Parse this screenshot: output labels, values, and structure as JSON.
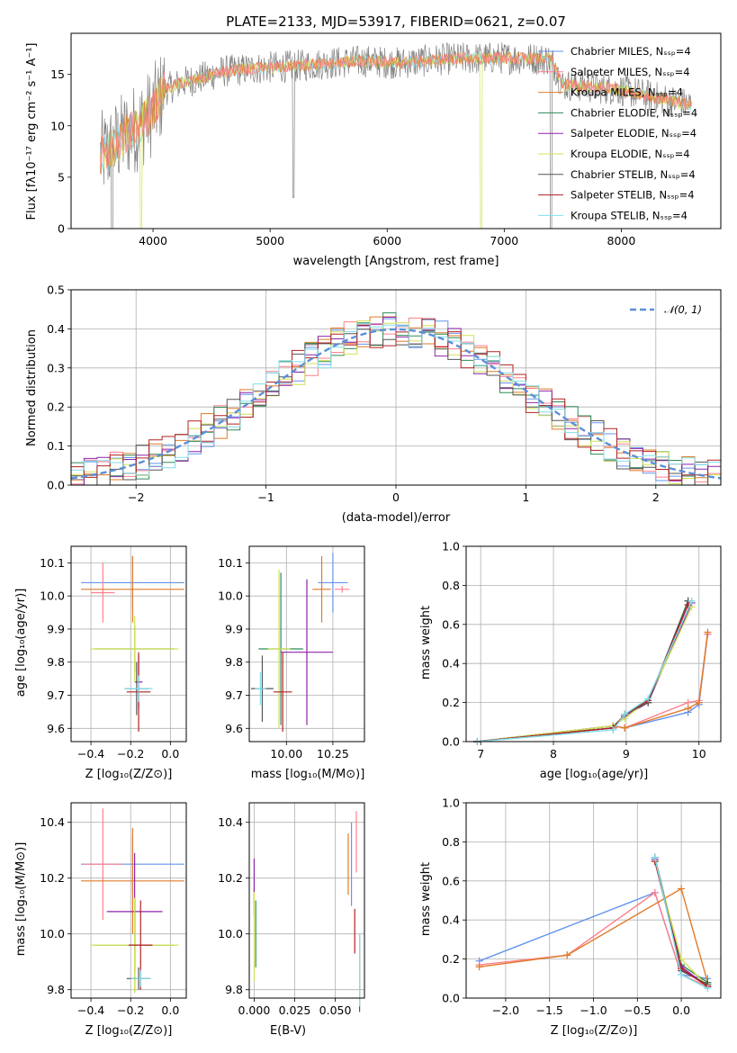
{
  "colors": {
    "palette": [
      "#6495ed",
      "#ff7f8c",
      "#e07b2a",
      "#2e8b57",
      "#8e24aa",
      "#d4e157",
      "#555555",
      "#b22222",
      "#80deea"
    ],
    "grid": "#b0b0b0",
    "gauss": "#5b8fd8"
  },
  "chart_data": [
    {
      "type": "line",
      "title": "PLATE=2133, MJD=53917, FIBERID=0621, z=0.07",
      "xlabel": "wavelength [Angstrom, rest frame]",
      "ylabel": "Flux [fλ10⁻¹⁷ erg cm⁻² s⁻¹ A⁻¹]",
      "xlim": [
        3300,
        8850
      ],
      "ylim": [
        0,
        19
      ],
      "xticks": [
        "4000",
        "5000",
        "6000",
        "7000",
        "8000"
      ],
      "yticks": [
        "0",
        "5",
        "10",
        "15"
      ],
      "legend": [
        "Chabrier MILES, Nₛₛₚ=4",
        "Salpeter MILES, Nₛₛₚ=4",
        "Kroupa MILES, Nₛₛₚ=4",
        "Chabrier ELODIE, Nₛₛₚ=4",
        "Salpeter ELODIE, Nₛₛₚ=4",
        "Kroupa ELODIE, Nₛₛₚ=4",
        "Chabrier STELIB, Nₛₛₚ=4",
        "Salpeter STELIB, Nₛₛₚ=4",
        "Kroupa STELIB, Nₛₛₚ=4"
      ],
      "legend_loc": "right",
      "continuum": {
        "x": [
          3550,
          3650,
          3750,
          3900,
          4000,
          4100,
          4250,
          4400,
          4600,
          4900,
          5200,
          5500,
          5800,
          6100,
          6500,
          7000,
          7400,
          7500,
          8000,
          8600
        ],
        "y": [
          7,
          7.8,
          9,
          10.2,
          11.5,
          13.5,
          14.2,
          14.6,
          15.3,
          15.6,
          15.8,
          16.1,
          16.3,
          16.1,
          16.5,
          16.6,
          16.5,
          14,
          13.5,
          12
        ]
      },
      "grid": false
    },
    {
      "type": "bar",
      "xlabel": "(data-model)/error",
      "ylabel": "Normed distribution",
      "xlim": [
        -2.5,
        2.5
      ],
      "ylim": [
        0,
        0.5
      ],
      "xticks": [
        "−2",
        "−1",
        "0",
        "1",
        "2"
      ],
      "yticks": [
        "0.0",
        "0.1",
        "0.2",
        "0.3",
        "0.4",
        "0.5"
      ],
      "legend": [
        "𝒩(0, 1)"
      ],
      "legend_loc": "top-right",
      "bin_width": 0.1,
      "grid": true
    },
    {
      "type": "scatter",
      "xlabel": "Z [log₁₀(Z/Z⊙)]",
      "ylabel": "age  [log₁₀(age/yr)]",
      "xlim": [
        -0.5,
        0.08
      ],
      "ylim": [
        9.56,
        10.15
      ],
      "xticks": [
        "−0.4",
        "−0.2",
        "0.0"
      ],
      "yticks": [
        "9.6",
        "9.7",
        "9.8",
        "9.9",
        "10.0",
        "10.1"
      ],
      "points": [
        {
          "x": -0.19,
          "y": 10.04,
          "xerr": 0.26,
          "yerr": 0.08
        },
        {
          "x": -0.34,
          "y": 10.01,
          "xerr": 0.06,
          "yerr": 0.09
        },
        {
          "x": -0.19,
          "y": 10.02,
          "xerr": 0.26,
          "yerr": 0.1
        },
        {
          "x": -0.18,
          "y": 9.84,
          "xerr": 0.2,
          "yerr": 0.07
        },
        {
          "x": -0.16,
          "y": 9.74,
          "xerr": 0.02,
          "yerr": 0.08
        },
        {
          "x": -0.18,
          "y": 9.84,
          "xerr": 0.22,
          "yerr": 0.1
        },
        {
          "x": -0.17,
          "y": 9.72,
          "xerr": 0.06,
          "yerr": 0.08
        },
        {
          "x": -0.16,
          "y": 9.71,
          "xerr": 0.06,
          "yerr": 0.12
        },
        {
          "x": -0.16,
          "y": 9.72,
          "xerr": 0.07,
          "yerr": 0.04
        }
      ],
      "grid": true
    },
    {
      "type": "scatter",
      "xlabel": "mass [log₁₀(M/M⊙)]",
      "xlim": [
        9.8,
        10.42
      ],
      "ylim": [
        9.56,
        10.15
      ],
      "xticks": [
        "10.00",
        "10.25"
      ],
      "yticks": [
        "9.6",
        "9.7",
        "9.8",
        "9.9",
        "10.0",
        "10.1"
      ],
      "points": [
        {
          "x": 10.25,
          "y": 10.04,
          "xerr": 0.08,
          "yerr": 0.09
        },
        {
          "x": 10.3,
          "y": 10.02,
          "xerr": 0.04,
          "yerr": 0.01
        },
        {
          "x": 10.19,
          "y": 10.02,
          "xerr": 0.05,
          "yerr": 0.1
        },
        {
          "x": 9.97,
          "y": 9.84,
          "xerr": 0.12,
          "yerr": 0.23
        },
        {
          "x": 10.11,
          "y": 9.83,
          "xerr": 0.14,
          "yerr": 0.22
        },
        {
          "x": 9.96,
          "y": 9.84,
          "xerr": 0.06,
          "yerr": 0.24
        },
        {
          "x": 9.87,
          "y": 9.72,
          "xerr": 0.06,
          "yerr": 0.1
        },
        {
          "x": 9.98,
          "y": 9.71,
          "xerr": 0.05,
          "yerr": 0.12
        },
        {
          "x": 9.86,
          "y": 9.72,
          "xerr": 0.03,
          "yerr": 0.05
        }
      ],
      "grid": true
    },
    {
      "type": "line",
      "xlabel": "age  [log₁₀(age/yr)]",
      "ylabel": "mass weight",
      "xlim": [
        6.8,
        10.3
      ],
      "ylim": [
        0,
        1
      ],
      "xticks": [
        "7",
        "8",
        "9",
        "10"
      ],
      "yticks": [
        "0.0",
        "0.2",
        "0.4",
        "0.6",
        "0.8",
        "1.0"
      ],
      "series": [
        {
          "x": [
            6.95,
            8.82,
            8.98,
            9.85,
            10.0,
            10.12
          ],
          "y": [
            0.0,
            0.08,
            0.07,
            0.15,
            0.19,
            0.55
          ]
        },
        {
          "x": [
            6.95,
            8.82,
            8.98,
            9.85,
            10.0,
            10.12
          ],
          "y": [
            0.0,
            0.08,
            0.07,
            0.2,
            0.21,
            0.55
          ]
        },
        {
          "x": [
            6.95,
            8.82,
            8.98,
            9.85,
            10.0,
            10.12
          ],
          "y": [
            0.0,
            0.08,
            0.07,
            0.17,
            0.2,
            0.56
          ]
        },
        {
          "x": [
            6.95,
            8.82,
            8.98,
            9.3,
            9.85
          ],
          "y": [
            0.0,
            0.08,
            0.13,
            0.2,
            0.72
          ]
        },
        {
          "x": [
            6.95,
            8.82,
            8.98,
            9.3,
            9.9
          ],
          "y": [
            0.0,
            0.07,
            0.13,
            0.2,
            0.71
          ]
        },
        {
          "x": [
            6.95,
            8.82,
            8.98,
            9.3,
            9.9
          ],
          "y": [
            0.0,
            0.08,
            0.12,
            0.21,
            0.69
          ]
        },
        {
          "x": [
            6.95,
            8.82,
            8.98,
            9.3,
            9.85
          ],
          "y": [
            0.0,
            0.07,
            0.14,
            0.2,
            0.72
          ]
        },
        {
          "x": [
            6.95,
            8.82,
            8.98,
            9.3,
            9.85
          ],
          "y": [
            0.0,
            0.07,
            0.14,
            0.21,
            0.7
          ]
        },
        {
          "x": [
            6.95,
            8.82,
            8.98,
            9.3,
            9.9
          ],
          "y": [
            0.0,
            0.06,
            0.14,
            0.22,
            0.72
          ]
        }
      ],
      "grid": true
    },
    {
      "type": "scatter",
      "xlabel": "Z [log₁₀(Z/Z⊙)]",
      "ylabel": "mass [log₁₀(M/M⊙)]",
      "xlim": [
        -0.5,
        0.08
      ],
      "ylim": [
        9.77,
        10.47
      ],
      "xticks": [
        "−0.4",
        "−0.2",
        "0.0"
      ],
      "yticks": [
        "9.8",
        "10.0",
        "10.2",
        "10.4"
      ],
      "points": [
        {
          "x": -0.19,
          "y": 10.25,
          "xerr": 0.26,
          "yerr": 0.1
        },
        {
          "x": -0.34,
          "y": 10.25,
          "xerr": 0.1,
          "yerr": 0.2
        },
        {
          "x": -0.19,
          "y": 10.19,
          "xerr": 0.26,
          "yerr": 0.19
        },
        {
          "x": -0.18,
          "y": 9.96,
          "xerr": 0.2,
          "yerr": 0.17
        },
        {
          "x": -0.18,
          "y": 10.08,
          "xerr": 0.14,
          "yerr": 0.21
        },
        {
          "x": -0.18,
          "y": 9.96,
          "xerr": 0.22,
          "yerr": 0.17
        },
        {
          "x": -0.16,
          "y": 9.84,
          "xerr": 0.06,
          "yerr": 0.04
        },
        {
          "x": -0.15,
          "y": 9.96,
          "xerr": 0.06,
          "yerr": 0.16
        },
        {
          "x": -0.15,
          "y": 9.84,
          "xerr": 0.05,
          "yerr": 0.03
        }
      ],
      "grid": true
    },
    {
      "type": "scatter",
      "xlabel": "E(B-V)",
      "xlim": [
        -0.003,
        0.068
      ],
      "ylim": [
        9.77,
        10.47
      ],
      "xticks": [
        "0.000",
        "0.025",
        "0.050"
      ],
      "yticks": [
        "9.8",
        "10.0",
        "10.2",
        "10.4"
      ],
      "points": [
        {
          "x": 0.06,
          "y": 10.25,
          "yerr": 0.15
        },
        {
          "x": 0.063,
          "y": 10.33,
          "yerr": 0.11
        },
        {
          "x": 0.058,
          "y": 10.25,
          "yerr": 0.11
        },
        {
          "x": 0.001,
          "y": 10.0,
          "yerr": 0.12
        },
        {
          "x": 0.0,
          "y": 10.17,
          "yerr": 0.1
        },
        {
          "x": 0.0,
          "y": 9.99,
          "yerr": 0.16
        },
        {
          "x": 0.065,
          "y": 9.86,
          "yerr": 0.14
        },
        {
          "x": 0.062,
          "y": 10.01,
          "yerr": 0.08
        },
        {
          "x": 0.065,
          "y": 9.87,
          "yerr": 0.13
        }
      ],
      "grid": true
    },
    {
      "type": "line",
      "xlabel": "Z [log₁₀(Z/Z⊙)]",
      "ylabel": "mass weight",
      "xlim": [
        -2.45,
        0.45
      ],
      "ylim": [
        0,
        1
      ],
      "xticks": [
        "−2.0",
        "−1.5",
        "−1.0",
        "−0.5",
        "0.0"
      ],
      "yticks": [
        "0.0",
        "0.2",
        "0.4",
        "0.6",
        "0.8",
        "1.0"
      ],
      "series": [
        {
          "x": [
            -2.3,
            -0.3,
            0.0,
            0.3
          ],
          "y": [
            0.19,
            0.54,
            0.12,
            0.1
          ]
        },
        {
          "x": [
            -2.3,
            -1.3,
            -0.3,
            0.0,
            0.3
          ],
          "y": [
            0.17,
            0.22,
            0.54,
            0.12,
            0.06
          ]
        },
        {
          "x": [
            -2.3,
            -1.3,
            0.0,
            0.3
          ],
          "y": [
            0.16,
            0.22,
            0.56,
            0.08
          ]
        },
        {
          "x": [
            -0.3,
            0.0,
            0.3
          ],
          "y": [
            0.72,
            0.17,
            0.08
          ]
        },
        {
          "x": [
            -0.3,
            0.0,
            0.3
          ],
          "y": [
            0.71,
            0.16,
            0.06
          ]
        },
        {
          "x": [
            -0.3,
            0.0,
            0.3
          ],
          "y": [
            0.7,
            0.2,
            0.06
          ]
        },
        {
          "x": [
            -0.3,
            0.0,
            0.3
          ],
          "y": [
            0.72,
            0.14,
            0.07
          ]
        },
        {
          "x": [
            -0.3,
            0.0,
            0.3
          ],
          "y": [
            0.7,
            0.15,
            0.06
          ]
        },
        {
          "x": [
            -0.3,
            0.0,
            0.3
          ],
          "y": [
            0.72,
            0.12,
            0.05
          ]
        }
      ],
      "grid": true
    }
  ]
}
